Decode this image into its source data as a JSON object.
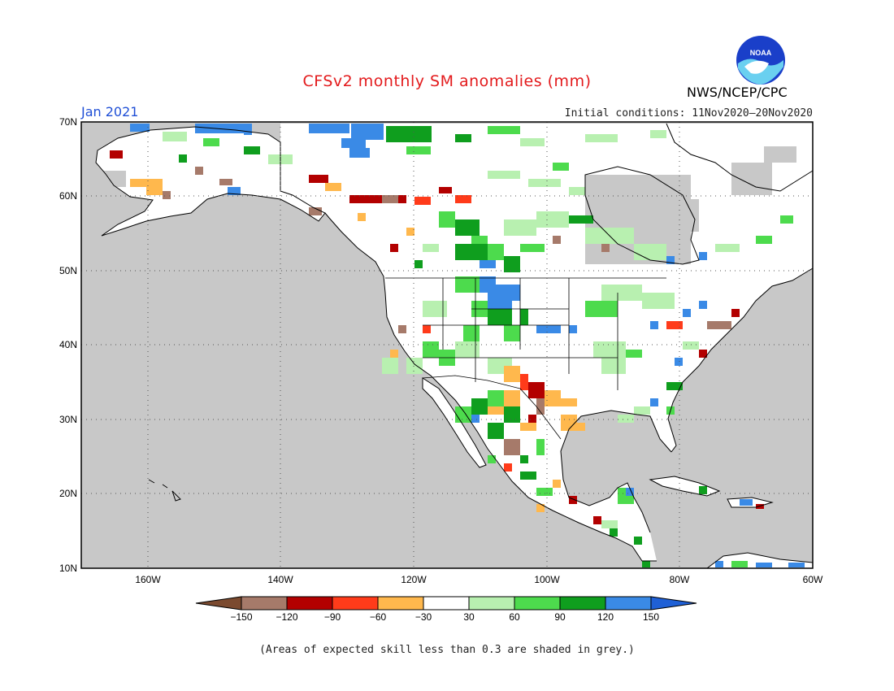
{
  "title": "CFSv2 monthly SM anomalies (mm)",
  "valid_month": "Jan 2021",
  "initial_conditions": "Initial conditions: 11Nov2020–20Nov2020",
  "agency": "NWS/NCEP/CPC",
  "logo_text": "NOAA",
  "footnote": "(Areas of expected skill less than 0.3 are shaded in grey.)",
  "lat_labels": [
    "70N",
    "60N",
    "50N",
    "40N",
    "30N",
    "20N",
    "10N"
  ],
  "lon_labels": [
    "160W",
    "140W",
    "120W",
    "100W",
    "80W",
    "60W"
  ],
  "colorbar": {
    "ticks": [
      "−150",
      "−120",
      "−90",
      "−60",
      "−30",
      "30",
      "60",
      "90",
      "120",
      "150"
    ],
    "colors": [
      "#7b4a2f",
      "#a67a6a",
      "#b30000",
      "#ff3b1a",
      "#ffb84d",
      "#ffffff",
      "#b8f0b0",
      "#4ddb4d",
      "#0f9e1e",
      "#3a8ae6",
      "#1f60d6"
    ]
  },
  "colors": {
    "ocean_grey": "#c8c8c8",
    "title_red": "#e31a1c",
    "month_blue": "#1f4fd6"
  }
}
